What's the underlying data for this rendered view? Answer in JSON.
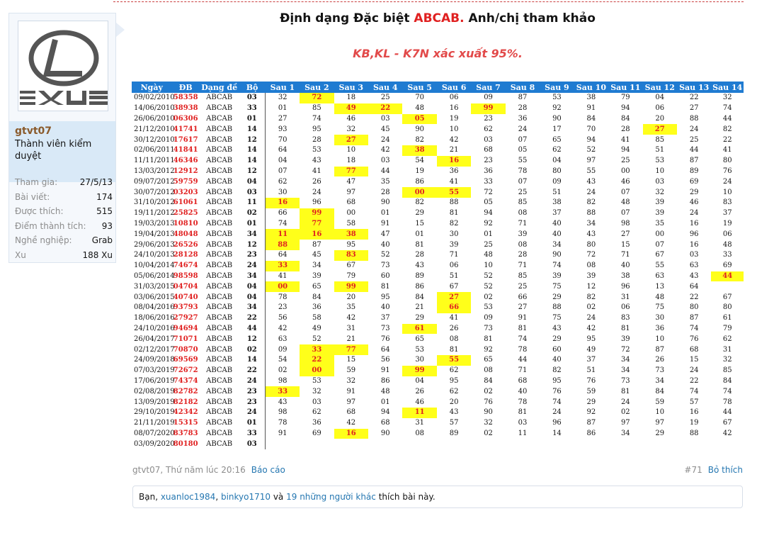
{
  "user": {
    "name": "gtvt07",
    "title": "Thành viên kiểm duyệt",
    "stats": [
      {
        "label": "Tham gia:",
        "value": "27/5/13"
      },
      {
        "label": "Bài viết:",
        "value": "174"
      },
      {
        "label": "Được thích:",
        "value": "515"
      },
      {
        "label": "Điểm thành tích:",
        "value": "93"
      },
      {
        "label": "Nghề nghiệp:",
        "value": "Grab"
      },
      {
        "label": "Xu",
        "value": "188 Xu"
      }
    ]
  },
  "post": {
    "title_prefix": "Định dạng Đặc biệt ",
    "title_accent": "ABCAB.",
    "title_suffix": " Anh/chị tham khảo",
    "subtitle": "KB,KL - K7N xác xuất 95%.",
    "author_time": "gtvt07, Thứ năm lúc 20:16",
    "report": "Báo cáo",
    "post_number": "#71",
    "unlike": "Bỏ thích",
    "likes": {
      "prefix": "Bạn, ",
      "user1": "xuanloc1984",
      "sep": ", ",
      "user2": "binkyo1710",
      "and": " và ",
      "others": "19 những người khác",
      "suffix": " thích bài này."
    }
  },
  "table": {
    "headers": [
      "Ngày",
      "ĐB",
      "Dạng đề",
      "Bộ",
      "Sau 1",
      "Sau 2",
      "Sau 3",
      "Sau 4",
      "Sau 5",
      "Sau 6",
      "Sau 7",
      "Sau 8",
      "Sau 9",
      "Sau 10",
      "Sau 11",
      "Sau 12",
      "Sau 13",
      "Sau 14"
    ],
    "rows": [
      {
        "date": "09/02/2010",
        "db": "58358",
        "dang": "ABCAB",
        "bo": "03",
        "vals": [
          "32",
          "72",
          "18",
          "25",
          "70",
          "06",
          "09",
          "87",
          "53",
          "38",
          "79",
          "04",
          "22",
          "32"
        ],
        "hl": [
          1
        ]
      },
      {
        "date": "14/06/2010",
        "db": "38938",
        "dang": "ABCAB",
        "bo": "33",
        "vals": [
          "01",
          "85",
          "49",
          "22",
          "48",
          "16",
          "99",
          "28",
          "92",
          "91",
          "94",
          "06",
          "27",
          "74"
        ],
        "hl": [
          2,
          3,
          6
        ]
      },
      {
        "date": "26/06/2010",
        "db": "06306",
        "dang": "ABCAB",
        "bo": "01",
        "vals": [
          "27",
          "74",
          "46",
          "03",
          "05",
          "19",
          "23",
          "36",
          "90",
          "84",
          "84",
          "20",
          "88",
          "44"
        ],
        "hl": [
          4
        ]
      },
      {
        "date": "21/12/2010",
        "db": "41741",
        "dang": "ABCAB",
        "bo": "14",
        "vals": [
          "93",
          "95",
          "32",
          "45",
          "90",
          "10",
          "62",
          "24",
          "17",
          "70",
          "28",
          "27",
          "24",
          "82"
        ],
        "hl": [
          11
        ]
      },
      {
        "date": "30/12/2010",
        "db": "17617",
        "dang": "ABCAB",
        "bo": "12",
        "vals": [
          "70",
          "28",
          "27",
          "24",
          "82",
          "42",
          "03",
          "07",
          "65",
          "94",
          "41",
          "85",
          "25",
          "22"
        ],
        "hl": [
          2
        ]
      },
      {
        "date": "02/06/2011",
        "db": "41841",
        "dang": "ABCAB",
        "bo": "14",
        "vals": [
          "64",
          "53",
          "10",
          "42",
          "38",
          "21",
          "68",
          "05",
          "62",
          "52",
          "94",
          "51",
          "44",
          "41"
        ],
        "hl": [
          4
        ]
      },
      {
        "date": "11/11/2011",
        "db": "46346",
        "dang": "ABCAB",
        "bo": "14",
        "vals": [
          "04",
          "43",
          "18",
          "03",
          "54",
          "16",
          "23",
          "55",
          "04",
          "97",
          "25",
          "53",
          "87",
          "80"
        ],
        "hl": [
          5
        ]
      },
      {
        "date": "13/03/2012",
        "db": "12912",
        "dang": "ABCAB",
        "bo": "12",
        "vals": [
          "07",
          "41",
          "77",
          "44",
          "19",
          "36",
          "36",
          "78",
          "80",
          "55",
          "00",
          "10",
          "89",
          "76"
        ],
        "hl": [
          2
        ]
      },
      {
        "date": "09/07/2012",
        "db": "59759",
        "dang": "ABCAB",
        "bo": "04",
        "vals": [
          "62",
          "26",
          "47",
          "35",
          "86",
          "41",
          "33",
          "07",
          "09",
          "43",
          "46",
          "03",
          "69",
          "24"
        ],
        "hl": []
      },
      {
        "date": "30/07/2012",
        "db": "03203",
        "dang": "ABCAB",
        "bo": "03",
        "vals": [
          "30",
          "24",
          "97",
          "28",
          "00",
          "55",
          "72",
          "25",
          "51",
          "24",
          "07",
          "32",
          "29",
          "10"
        ],
        "hl": [
          4,
          5
        ]
      },
      {
        "date": "31/10/2012",
        "db": "61061",
        "dang": "ABCAB",
        "bo": "11",
        "vals": [
          "16",
          "96",
          "68",
          "90",
          "82",
          "88",
          "05",
          "85",
          "38",
          "82",
          "48",
          "39",
          "46",
          "83"
        ],
        "hl": [
          0
        ]
      },
      {
        "date": "19/11/2012",
        "db": "25825",
        "dang": "ABCAB",
        "bo": "02",
        "vals": [
          "66",
          "99",
          "00",
          "01",
          "29",
          "81",
          "94",
          "08",
          "37",
          "88",
          "07",
          "39",
          "24",
          "37"
        ],
        "hl": [
          1
        ]
      },
      {
        "date": "19/03/2013",
        "db": "10810",
        "dang": "ABCAB",
        "bo": "01",
        "vals": [
          "74",
          "77",
          "58",
          "91",
          "15",
          "82",
          "92",
          "71",
          "40",
          "34",
          "98",
          "35",
          "16",
          "19"
        ],
        "hl": [
          1
        ]
      },
      {
        "date": "19/04/2013",
        "db": "48048",
        "dang": "ABCAB",
        "bo": "34",
        "vals": [
          "11",
          "16",
          "38",
          "47",
          "01",
          "30",
          "01",
          "39",
          "40",
          "43",
          "27",
          "00",
          "96",
          "06"
        ],
        "hl": [
          0,
          1,
          2
        ]
      },
      {
        "date": "29/06/2013",
        "db": "26526",
        "dang": "ABCAB",
        "bo": "12",
        "vals": [
          "88",
          "87",
          "95",
          "40",
          "81",
          "39",
          "25",
          "08",
          "34",
          "80",
          "15",
          "07",
          "16",
          "48"
        ],
        "hl": [
          0
        ]
      },
      {
        "date": "24/10/2013",
        "db": "28128",
        "dang": "ABCAB",
        "bo": "23",
        "vals": [
          "64",
          "45",
          "83",
          "52",
          "28",
          "71",
          "48",
          "28",
          "90",
          "72",
          "71",
          "67",
          "03",
          "33"
        ],
        "hl": [
          2
        ]
      },
      {
        "date": "10/04/2014",
        "db": "74674",
        "dang": "ABCAB",
        "bo": "24",
        "vals": [
          "33",
          "34",
          "67",
          "73",
          "43",
          "06",
          "10",
          "71",
          "74",
          "08",
          "40",
          "55",
          "63",
          "69"
        ],
        "hl": [
          0
        ]
      },
      {
        "date": "05/06/2014",
        "db": "98598",
        "dang": "ABCAB",
        "bo": "34",
        "vals": [
          "41",
          "39",
          "79",
          "60",
          "89",
          "51",
          "52",
          "85",
          "39",
          "39",
          "38",
          "63",
          "43",
          "44"
        ],
        "hl": [
          13
        ]
      },
      {
        "date": "31/03/2015",
        "db": "04704",
        "dang": "ABCAB",
        "bo": "04",
        "vals": [
          "00",
          "65",
          "99",
          "81",
          "86",
          "67",
          "52",
          "25",
          "75",
          "12",
          "96",
          "13",
          "64",
          ""
        ],
        "hl": [
          0,
          2
        ]
      },
      {
        "date": "03/06/2015",
        "db": "40740",
        "dang": "ABCAB",
        "bo": "04",
        "vals": [
          "78",
          "84",
          "20",
          "95",
          "84",
          "27",
          "02",
          "66",
          "29",
          "82",
          "31",
          "48",
          "22",
          "67"
        ],
        "hl": [
          5
        ]
      },
      {
        "date": "08/04/2016",
        "db": "93793",
        "dang": "ABCAB",
        "bo": "34",
        "vals": [
          "23",
          "36",
          "35",
          "40",
          "21",
          "66",
          "53",
          "27",
          "88",
          "02",
          "06",
          "75",
          "80",
          "80"
        ],
        "hl": [
          5
        ]
      },
      {
        "date": "18/06/2016",
        "db": "27927",
        "dang": "ABCAB",
        "bo": "22",
        "vals": [
          "56",
          "58",
          "42",
          "37",
          "29",
          "41",
          "09",
          "91",
          "75",
          "24",
          "83",
          "30",
          "87",
          "61"
        ],
        "hl": []
      },
      {
        "date": "24/10/2016",
        "db": "94694",
        "dang": "ABCAB",
        "bo": "44",
        "vals": [
          "42",
          "49",
          "31",
          "73",
          "61",
          "26",
          "73",
          "81",
          "43",
          "42",
          "81",
          "36",
          "74",
          "79"
        ],
        "hl": [
          4
        ]
      },
      {
        "date": "26/04/2017",
        "db": "71071",
        "dang": "ABCAB",
        "bo": "12",
        "vals": [
          "63",
          "52",
          "21",
          "76",
          "65",
          "08",
          "81",
          "74",
          "29",
          "95",
          "39",
          "10",
          "76",
          "62"
        ],
        "hl": []
      },
      {
        "date": "02/12/2017",
        "db": "70870",
        "dang": "ABCAB",
        "bo": "02",
        "vals": [
          "09",
          "33",
          "77",
          "64",
          "53",
          "81",
          "92",
          "78",
          "60",
          "49",
          "72",
          "87",
          "68",
          "31"
        ],
        "hl": [
          1,
          2
        ]
      },
      {
        "date": "24/09/2018",
        "db": "69569",
        "dang": "ABCAB",
        "bo": "14",
        "vals": [
          "54",
          "22",
          "15",
          "56",
          "30",
          "55",
          "65",
          "44",
          "40",
          "37",
          "34",
          "26",
          "15",
          "32"
        ],
        "hl": [
          1,
          5
        ]
      },
      {
        "date": "07/03/2019",
        "db": "72672",
        "dang": "ABCAB",
        "bo": "22",
        "vals": [
          "02",
          "00",
          "59",
          "91",
          "99",
          "62",
          "08",
          "71",
          "82",
          "51",
          "34",
          "73",
          "24",
          "85"
        ],
        "hl": [
          1,
          4
        ]
      },
      {
        "date": "17/06/2019",
        "db": "74374",
        "dang": "ABCAB",
        "bo": "24",
        "vals": [
          "98",
          "53",
          "32",
          "86",
          "04",
          "95",
          "84",
          "68",
          "95",
          "76",
          "73",
          "34",
          "22",
          "84"
        ],
        "hl": []
      },
      {
        "date": "02/08/2019",
        "db": "82782",
        "dang": "ABCAB",
        "bo": "23",
        "vals": [
          "33",
          "32",
          "91",
          "48",
          "26",
          "62",
          "02",
          "40",
          "76",
          "59",
          "81",
          "84",
          "74",
          "74"
        ],
        "hl": [
          0
        ]
      },
      {
        "date": "13/09/2019",
        "db": "82182",
        "dang": "ABCAB",
        "bo": "23",
        "vals": [
          "43",
          "03",
          "97",
          "01",
          "46",
          "20",
          "76",
          "78",
          "74",
          "29",
          "24",
          "59",
          "57",
          "78"
        ],
        "hl": []
      },
      {
        "date": "29/10/2019",
        "db": "42342",
        "dang": "ABCAB",
        "bo": "24",
        "vals": [
          "98",
          "62",
          "68",
          "94",
          "11",
          "43",
          "90",
          "81",
          "24",
          "92",
          "02",
          "10",
          "16",
          "44"
        ],
        "hl": [
          4
        ]
      },
      {
        "date": "21/11/2019",
        "db": "15315",
        "dang": "ABCAB",
        "bo": "01",
        "vals": [
          "78",
          "36",
          "42",
          "68",
          "31",
          "57",
          "32",
          "03",
          "96",
          "87",
          "97",
          "97",
          "19",
          "67"
        ],
        "hl": []
      },
      {
        "date": "08/07/2020",
        "db": "83783",
        "dang": "ABCAB",
        "bo": "33",
        "vals": [
          "91",
          "69",
          "16",
          "90",
          "08",
          "89",
          "02",
          "11",
          "14",
          "86",
          "34",
          "29",
          "88",
          "42"
        ],
        "hl": [
          2
        ]
      },
      {
        "date": "03/09/2020",
        "db": "80180",
        "dang": "ABCAB",
        "bo": "03",
        "vals": [
          "",
          "",
          "",
          "",
          "",
          "",
          "",
          "",
          "",
          "",
          "",
          "",
          "",
          ""
        ],
        "hl": []
      }
    ]
  },
  "colors": {
    "header_bg": "#1f7bd1",
    "highlight": "#ffff1a",
    "red": "#e02020",
    "link": "#2577b1"
  }
}
